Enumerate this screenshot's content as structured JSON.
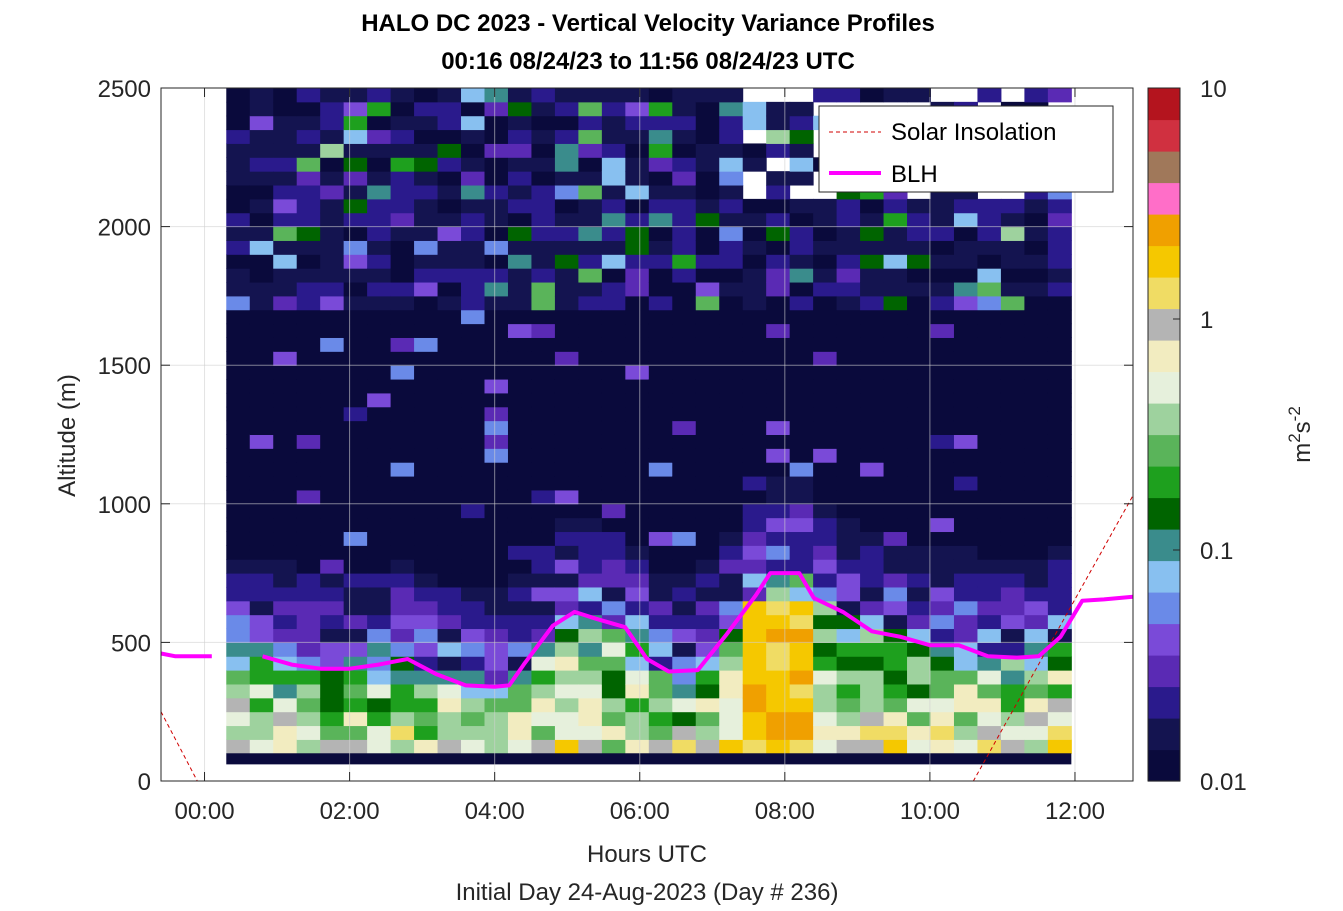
{
  "title": "HALO DC 2023 - Vertical Velocity Variance Profiles",
  "subtitle": "00:16 08/24/23 to 11:56 08/24/23  UTC",
  "chart_data": {
    "type": "heatmap",
    "xlabel": "Hours UTC",
    "ylabel": "Altitude (m)",
    "footer": "Initial Day 24-Aug-2023 (Day # 236)",
    "x_ticks": [
      "00:00",
      "02:00",
      "04:00",
      "06:00",
      "08:00",
      "10:00",
      "12:00"
    ],
    "x_tick_hours": [
      0,
      2,
      4,
      6,
      8,
      10,
      12
    ],
    "xlim_hours": [
      -0.6,
      12.8
    ],
    "y_ticks": [
      "0",
      "500",
      "1000",
      "1500",
      "2000",
      "2500"
    ],
    "y_tick_values": [
      0,
      500,
      1000,
      1500,
      2000,
      2500
    ],
    "ylim": [
      0,
      2500
    ],
    "grid": true,
    "colorbar": {
      "label": "m2s-2",
      "scale": "log",
      "range": [
        0.01,
        10
      ],
      "ticks": [
        "0.01",
        "0.1",
        "1",
        "10"
      ],
      "tick_values": [
        0.01,
        0.1,
        1,
        10
      ],
      "colors": [
        "#0a0a3c",
        "#141450",
        "#2a1a8c",
        "#5a2ab4",
        "#7a4ad8",
        "#6a8ae8",
        "#88c0f0",
        "#3a8c8c",
        "#006400",
        "#1ea01e",
        "#5ab45a",
        "#9ed29e",
        "#e6f0dc",
        "#f2ecc0",
        "#b4b4b4",
        "#f0dc64",
        "#f5c800",
        "#f0a000",
        "#ff6ec8",
        "#a0785a",
        "#d03040",
        "#b4141e"
      ]
    },
    "legend": {
      "position": "top-right",
      "entries": [
        {
          "label": "Solar Insolation",
          "color": "#d00000",
          "style": "dashed"
        },
        {
          "label": "BLH",
          "color": "#ff00ff",
          "style": "solid"
        }
      ]
    },
    "blh": {
      "name": "BLH",
      "color": "#ff00ff",
      "x_hours": [
        -0.6,
        -0.4,
        0.1,
        0.4,
        0.8,
        1.2,
        1.6,
        2.0,
        2.4,
        2.8,
        3.2,
        3.6,
        4.0,
        4.2,
        4.4,
        4.8,
        5.1,
        5.4,
        5.8,
        6.1,
        6.4,
        6.8,
        7.2,
        7.6,
        7.8,
        8.2,
        8.4,
        8.8,
        9.2,
        9.6,
        10.0,
        10.4,
        10.8,
        11.2,
        11.5,
        11.8,
        12.1,
        12.4,
        12.8
      ],
      "altitude_m": [
        460,
        450,
        450,
        null,
        450,
        420,
        405,
        405,
        420,
        440,
        385,
        345,
        340,
        345,
        420,
        560,
        610,
        585,
        555,
        440,
        395,
        400,
        530,
        670,
        750,
        750,
        660,
        610,
        540,
        520,
        490,
        490,
        450,
        445,
        450,
        520,
        650,
        655,
        665
      ]
    },
    "solar_insolation": {
      "name": "Solar Insolation",
      "color": "#d00000",
      "x_hours": [
        -0.6,
        -0.1,
        10.6,
        12.8
      ],
      "altitude_m": [
        250,
        0,
        0,
        1030
      ]
    },
    "variance_grid": {
      "x_start_hours": 0.3,
      "x_end_hours": 11.95,
      "n_columns": 36,
      "altitude_bottom_m": 100,
      "altitude_top_m": 2500,
      "bin_height_m": 50
    }
  }
}
